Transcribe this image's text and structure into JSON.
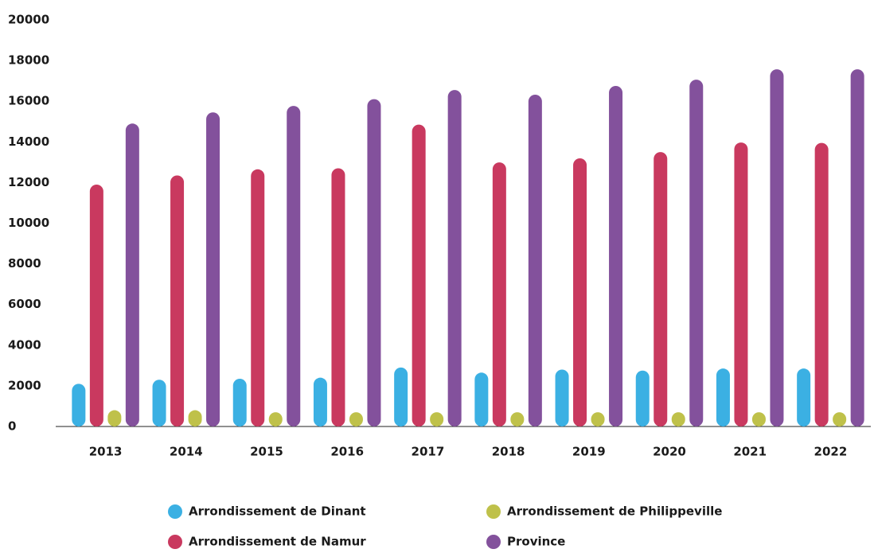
{
  "chart_data": {
    "type": "bar",
    "categories": [
      "2013",
      "2014",
      "2015",
      "2016",
      "2017",
      "2018",
      "2019",
      "2020",
      "2021",
      "2022"
    ],
    "series": [
      {
        "name": "Arrondissement de Dinant",
        "color": "#3bb0e3",
        "values": [
          2100,
          2300,
          2350,
          2400,
          2900,
          2650,
          2800,
          2750,
          2850,
          2850
        ]
      },
      {
        "name": "Arrondissement de Namur",
        "color": "#c9395f",
        "values": [
          11900,
          12350,
          12650,
          12700,
          14850,
          12990,
          13190,
          13500,
          13970,
          13950
        ]
      },
      {
        "name": "Arrondissement de Philippeville",
        "color": "#bfc14a",
        "values": [
          800,
          800,
          700,
          700,
          700,
          700,
          700,
          700,
          700,
          700
        ]
      },
      {
        "name": "Province",
        "color": "#83519c",
        "values": [
          14900,
          15450,
          15770,
          16100,
          16550,
          16320,
          16750,
          17060,
          17570,
          17570
        ]
      }
    ],
    "ylim": [
      0,
      20000
    ],
    "yticks": [
      0,
      2000,
      4000,
      6000,
      8000,
      10000,
      12000,
      14000,
      16000,
      18000,
      20000
    ]
  }
}
